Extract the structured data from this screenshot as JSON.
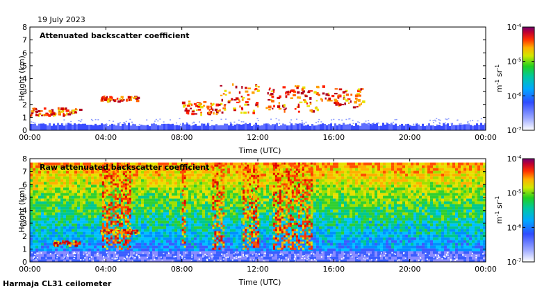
{
  "date": "19 July 2023",
  "footer": "Harmaja CL31 ceilometer",
  "chart_data": [
    {
      "type": "heatmap",
      "title": "Attenuated backscatter coefficient",
      "xlabel": "Time (UTC)",
      "ylabel": "Height (km)",
      "xlim": [
        0,
        24
      ],
      "ylim": [
        0,
        8
      ],
      "xticks": [
        "00:00",
        "04:00",
        "08:00",
        "12:00",
        "16:00",
        "20:00",
        "00:00"
      ],
      "yticks": [
        "0",
        "1",
        "2",
        "3",
        "4",
        "5",
        "6",
        "7",
        "8"
      ],
      "colorbar": {
        "scale": "log",
        "min": 1e-07,
        "max": 0.0001,
        "ticks": [
          "10-7",
          "10-6",
          "10-5",
          "10-4"
        ],
        "label": "m-1 sr-1"
      },
      "features": [
        {
          "kind": "boundary_layer",
          "start_h": 0,
          "end_h": 24,
          "top_km": 0.45
        },
        {
          "kind": "cloud_layer",
          "start_h": 0.0,
          "end_h": 2.6,
          "base_km": 1.2,
          "top_km": 1.8
        },
        {
          "kind": "cloud_layer",
          "start_h": 3.7,
          "end_h": 5.7,
          "base_km": 2.3,
          "top_km": 2.7
        },
        {
          "kind": "cloud_layer",
          "start_h": 8.0,
          "end_h": 10.0,
          "base_km": 1.3,
          "top_km": 2.3
        },
        {
          "kind": "cloud_layer",
          "start_h": 10.0,
          "end_h": 12.0,
          "base_km": 1.4,
          "top_km": 3.7
        },
        {
          "kind": "cloud_layer",
          "start_h": 12.3,
          "end_h": 15.5,
          "base_km": 1.5,
          "top_km": 3.5
        },
        {
          "kind": "cloud_layer",
          "start_h": 15.5,
          "end_h": 17.5,
          "base_km": 1.8,
          "top_km": 3.3
        }
      ]
    },
    {
      "type": "heatmap",
      "title": "Raw attenuated backscatter coefficient",
      "xlabel": "Time (UTC)",
      "ylabel": "Height (km)",
      "xlim": [
        0,
        24
      ],
      "ylim": [
        0,
        8
      ],
      "xticks": [
        "00:00",
        "04:00",
        "08:00",
        "12:00",
        "16:00",
        "20:00",
        "00:00"
      ],
      "yticks": [
        "0",
        "1",
        "2",
        "3",
        "4",
        "5",
        "6",
        "7",
        "8"
      ],
      "colorbar": {
        "scale": "log",
        "min": 1e-07,
        "max": 0.0001,
        "ticks": [
          "10-7",
          "10-6",
          "10-5",
          "10-4"
        ],
        "label": "m-1 sr-1"
      },
      "features": [
        {
          "kind": "noise_field",
          "start_h": 0,
          "end_h": 24,
          "base_km": 0,
          "top_km": 7.7
        },
        {
          "kind": "high_noise_band",
          "start_h": 3.8,
          "end_h": 5.3
        },
        {
          "kind": "high_noise_band",
          "start_h": 8.0,
          "end_h": 8.2
        },
        {
          "kind": "high_noise_band",
          "start_h": 9.6,
          "end_h": 10.2
        },
        {
          "kind": "high_noise_band",
          "start_h": 11.2,
          "end_h": 12.0
        },
        {
          "kind": "high_noise_band",
          "start_h": 12.8,
          "end_h": 14.8
        },
        {
          "kind": "cloud_layer",
          "start_h": 1.2,
          "end_h": 2.6,
          "base_km": 1.3,
          "top_km": 1.7
        },
        {
          "kind": "cloud_layer",
          "start_h": 3.7,
          "end_h": 5.7,
          "base_km": 2.3,
          "top_km": 2.6
        }
      ]
    }
  ]
}
